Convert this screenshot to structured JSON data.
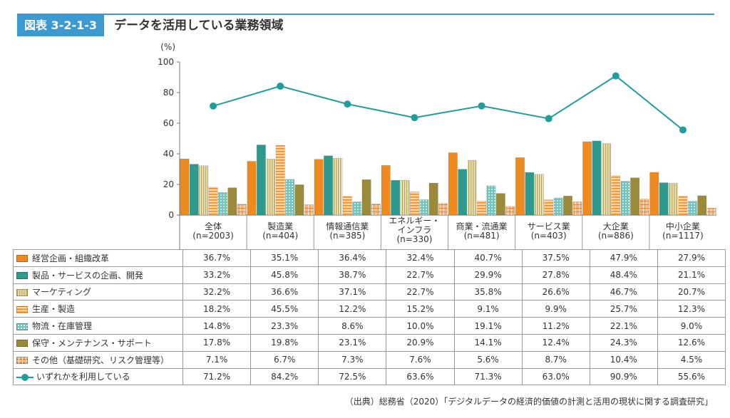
{
  "figure": {
    "label": "図表 3-2-1-3",
    "title": "データを活用している業務領域",
    "source": "（出典）総務省（2020）「デジタルデータの経済的価値の計測と活用の現状に関する調査研究」"
  },
  "chart_data": {
    "type": "bar",
    "y_unit": "(%)",
    "ylim": [
      0,
      100
    ],
    "yticks": [
      0,
      20,
      40,
      60,
      80,
      100
    ],
    "grid": false,
    "categories": [
      [
        "全体",
        "(n=2003)"
      ],
      [
        "製造業",
        "(n=404)"
      ],
      [
        "情報通信業",
        "(n=385)"
      ],
      [
        "エネルギー・",
        "インフラ",
        "(n=330)"
      ],
      [
        "商業・流通業",
        "(n=481)"
      ],
      [
        "サービス業",
        "(n=403)"
      ],
      [
        "大企業",
        "(n=886)"
      ],
      [
        "中小企業",
        "(n=1117)"
      ]
    ],
    "series": [
      {
        "name": "経営企画・組織改革",
        "kind": "bar",
        "color": "#ef8a1f",
        "pattern": "solid",
        "values": [
          36.7,
          35.1,
          36.4,
          32.4,
          40.7,
          37.5,
          47.9,
          27.9
        ],
        "labels": [
          "36.7%",
          "35.1%",
          "36.4%",
          "32.4%",
          "40.7%",
          "37.5%",
          "47.9%",
          "27.9%"
        ]
      },
      {
        "name": "製品・サービスの企画、開発",
        "kind": "bar",
        "color": "#2e9a8e",
        "pattern": "solid",
        "values": [
          33.2,
          45.8,
          38.7,
          22.7,
          29.9,
          27.8,
          48.4,
          21.1
        ],
        "labels": [
          "33.2%",
          "45.8%",
          "38.7%",
          "22.7%",
          "29.9%",
          "27.8%",
          "48.4%",
          "21.1%"
        ]
      },
      {
        "name": "マーケティング",
        "kind": "bar",
        "color": "#d8c879",
        "pattern": "vlines",
        "values": [
          32.2,
          36.6,
          37.1,
          22.7,
          35.8,
          26.6,
          46.7,
          20.7
        ],
        "labels": [
          "32.2%",
          "36.6%",
          "37.1%",
          "22.7%",
          "35.8%",
          "26.6%",
          "46.7%",
          "20.7%"
        ]
      },
      {
        "name": "生産・製造",
        "kind": "bar",
        "color": "#f4a762",
        "pattern": "hlines",
        "values": [
          18.2,
          45.5,
          12.2,
          15.2,
          9.1,
          9.9,
          25.7,
          12.3
        ],
        "labels": [
          "18.2%",
          "45.5%",
          "12.2%",
          "15.2%",
          "9.1%",
          "9.9%",
          "25.7%",
          "12.3%"
        ]
      },
      {
        "name": "物流・在庫管理",
        "kind": "bar",
        "color": "#7cc6c0",
        "pattern": "dots",
        "values": [
          14.8,
          23.3,
          8.6,
          10.0,
          19.1,
          11.2,
          22.1,
          9.0
        ],
        "labels": [
          "14.8%",
          "23.3%",
          "8.6%",
          "10.0%",
          "19.1%",
          "11.2%",
          "22.1%",
          "9.0%"
        ]
      },
      {
        "name": "保守・メンテナンス・サポート",
        "kind": "bar",
        "color": "#9a8a3a",
        "pattern": "solid",
        "values": [
          17.8,
          19.8,
          23.1,
          20.9,
          14.1,
          12.4,
          24.3,
          12.6
        ],
        "labels": [
          "17.8%",
          "19.8%",
          "23.1%",
          "20.9%",
          "14.1%",
          "12.4%",
          "24.3%",
          "12.6%"
        ]
      },
      {
        "name": "その他（基礎研究、リスク管理等）",
        "kind": "bar",
        "color": "#f6b27a",
        "pattern": "grid",
        "values": [
          7.1,
          6.7,
          7.3,
          7.6,
          5.6,
          8.7,
          10.4,
          4.5
        ],
        "labels": [
          "7.1%",
          "6.7%",
          "7.3%",
          "7.6%",
          "5.6%",
          "8.7%",
          "10.4%",
          "4.5%"
        ]
      },
      {
        "name": "いずれかを利用している",
        "kind": "line",
        "color": "#1f9e9e",
        "values": [
          71.2,
          84.2,
          72.5,
          63.6,
          71.3,
          63.0,
          90.9,
          55.6
        ],
        "labels": [
          "71.2%",
          "84.2%",
          "72.5%",
          "63.6%",
          "71.3%",
          "63.0%",
          "90.9%",
          "55.6%"
        ]
      }
    ]
  }
}
